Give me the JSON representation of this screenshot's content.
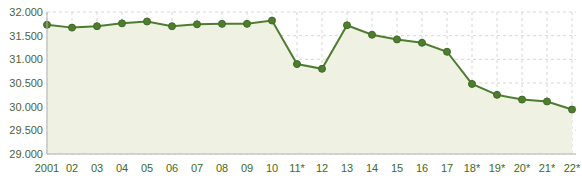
{
  "chart_data": {
    "type": "line",
    "categories": [
      "2001",
      "02",
      "03",
      "04",
      "05",
      "06",
      "07",
      "08",
      "09",
      "10",
      "11*",
      "12",
      "13",
      "14",
      "15",
      "16",
      "17",
      "18*",
      "19*",
      "20*",
      "21*",
      "22*"
    ],
    "values": [
      31730,
      31670,
      31700,
      31760,
      31800,
      31700,
      31740,
      31750,
      31750,
      31820,
      30900,
      30800,
      31720,
      31520,
      31420,
      31350,
      31160,
      30480,
      30250,
      30150,
      30110,
      29940
    ],
    "color": "#4e7d2f",
    "ylim": [
      29000,
      32000
    ],
    "yticks": [
      {
        "value": 29000,
        "label": "29.000"
      },
      {
        "value": 29500,
        "label": "29.500"
      },
      {
        "value": 30000,
        "label": "30.000"
      },
      {
        "value": 30500,
        "label": "30.500"
      },
      {
        "value": 31000,
        "label": "31.000"
      },
      {
        "value": 31500,
        "label": "31.500"
      },
      {
        "value": 32000,
        "label": "32.000"
      }
    ],
    "grid": true,
    "marker": "circle"
  }
}
